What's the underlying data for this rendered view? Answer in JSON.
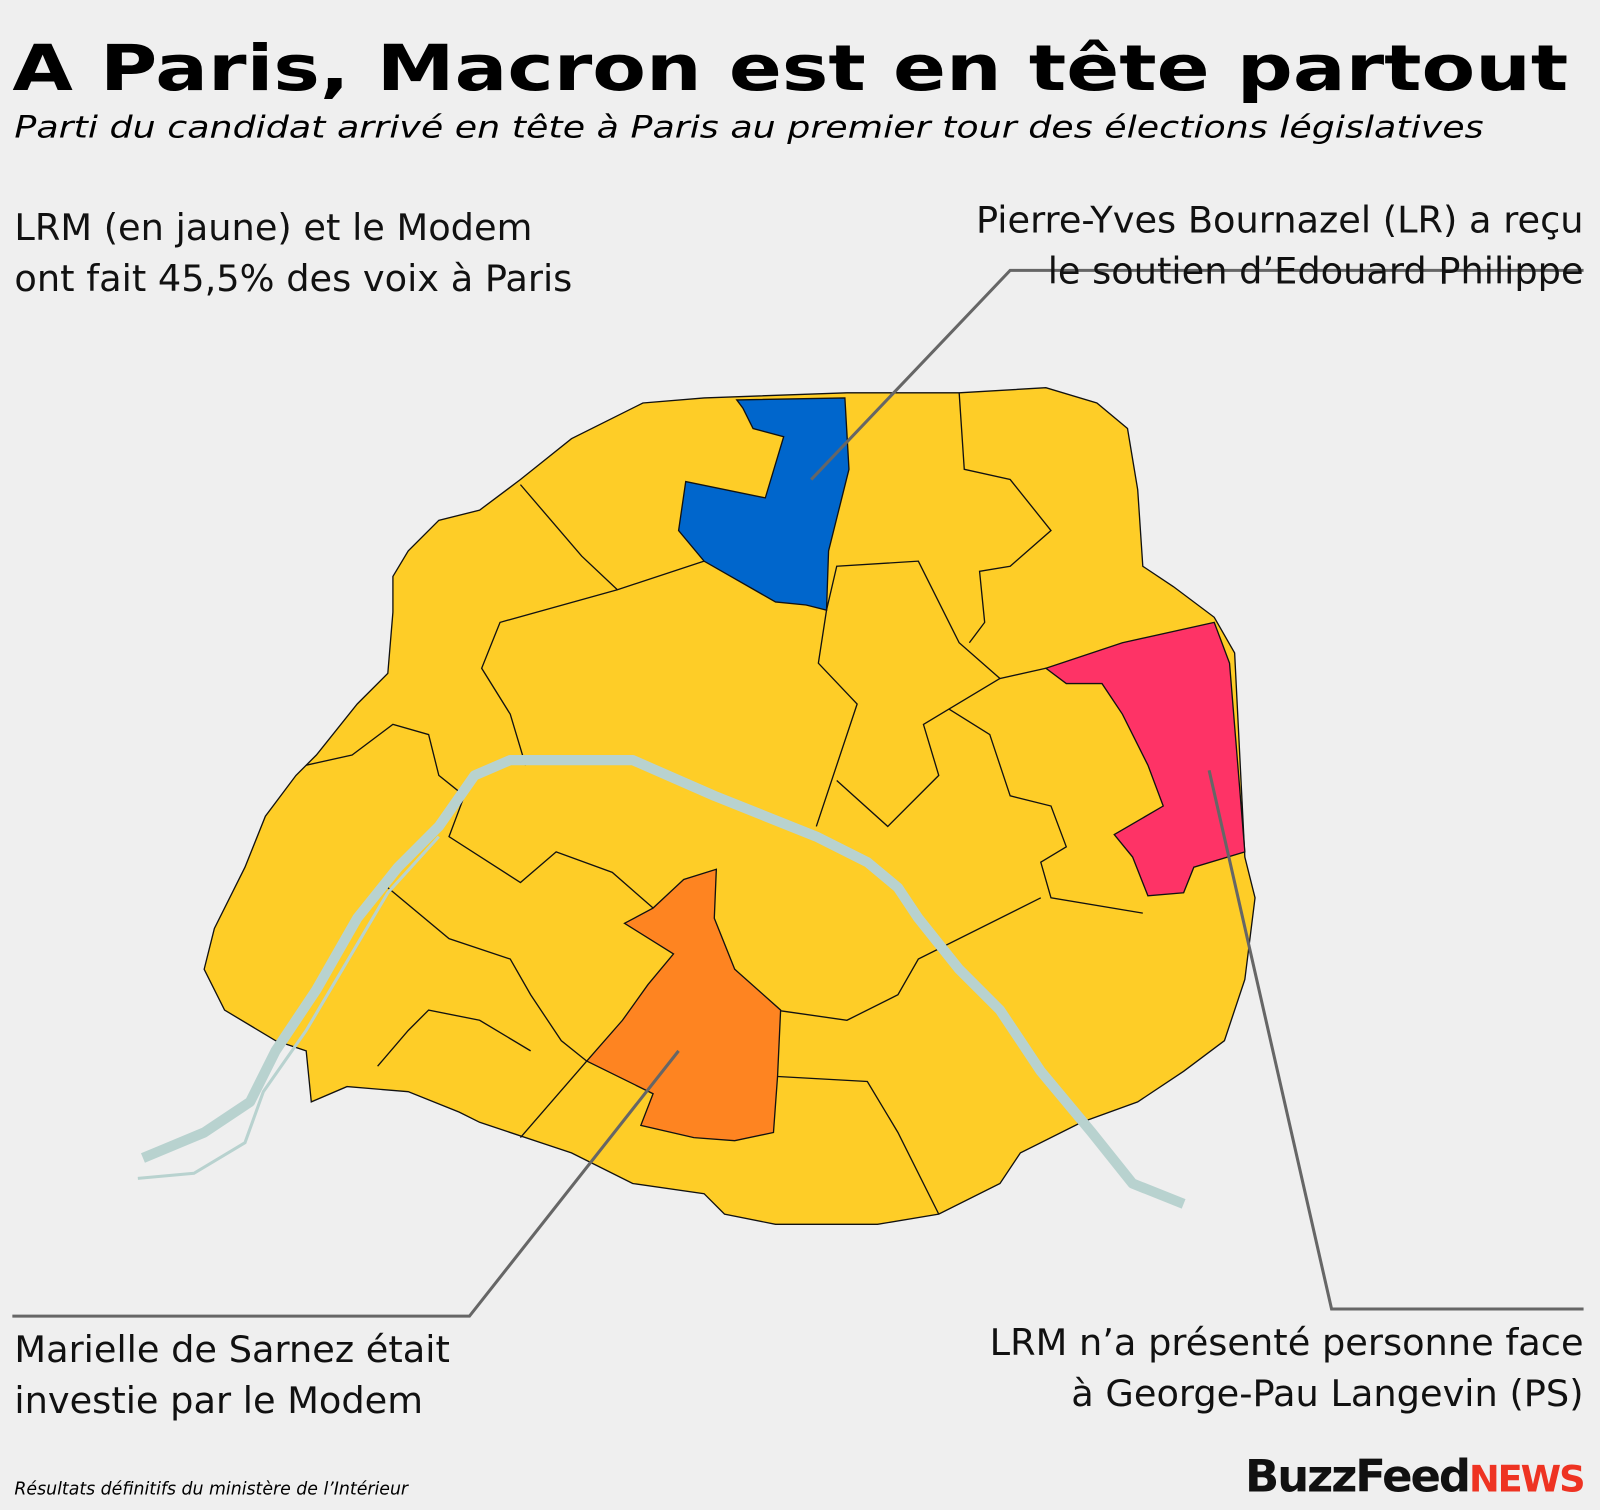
{
  "title": "A Paris, Macron est en tête partout",
  "subtitle": "Parti du candidat arrivé en tête à Paris au premier tour des élections législatives",
  "annotations": [
    {
      "lines": [
        "LRM (en jaune) et le Modem",
        "ont fait 45,5% des voix à Paris"
      ]
    },
    {
      "lines": [
        "Pierre-Yves Bournazel (LR) a reçu",
        "le soutien d’Edouard Philippe"
      ]
    },
    {
      "lines": [
        "Marielle de Sarnez était",
        "investie par le Modem"
      ]
    },
    {
      "lines": [
        "LRM n’a présenté personne face",
        "à George-Pau Langevin (PS)"
      ]
    }
  ],
  "source": "Résultats définitifs du ministère de l’Intérieur",
  "logo": {
    "buzz": "BuzzFeed",
    "news": "NEWS"
  }
}
